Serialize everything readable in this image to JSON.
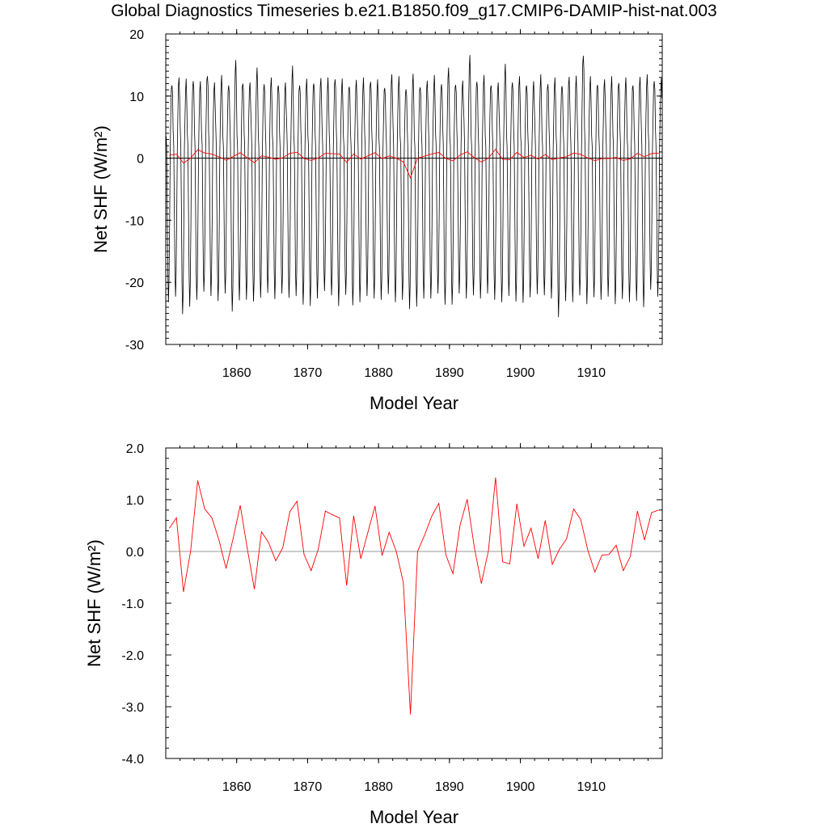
{
  "title": "Global Diagnostics Timeseries b.e21.B1850.f09_g17.CMIP6-DAMIP-hist-nat.003",
  "colors": {
    "monthly": "#000000",
    "annual": "#ff0000",
    "zero_line_top": "#000000",
    "zero_line_bottom": "#999999"
  },
  "chart_data": [
    {
      "type": "line",
      "xlabel": "Model Year",
      "ylabel": "Net SHF (W/m²)",
      "xlim": [
        1850,
        1920
      ],
      "ylim": [
        -30,
        20
      ],
      "x_ticks": [
        "1860",
        "1870",
        "1880",
        "1890",
        "1900",
        "1910"
      ],
      "y_ticks": [
        "20",
        "10",
        "0",
        "-10",
        "-20",
        "-30"
      ],
      "series": [
        {
          "style": "monthly",
          "color": "#000000",
          "note_values": "monthly seasonal cycle, peaks ~ +10 to +17, troughs ~ -21 to -26",
          "annual_peak": [
            12.5,
            13,
            12,
            12.8,
            12,
            14,
            12.2,
            12.6,
            12.1,
            15.4,
            12.8,
            12.2,
            13.8,
            12.3,
            12.6,
            12.5,
            12.2,
            14.1,
            12.1,
            12.4,
            12.8,
            12.9,
            12.2,
            13.1,
            12.4,
            12.3,
            12.6,
            12.2,
            12.7,
            12.3,
            12.1,
            13.5,
            12.4,
            11.5,
            13.2,
            12.2,
            12.5,
            12.6,
            12.3,
            14.2,
            12.6,
            12.5,
            15.8,
            12.7,
            13,
            12.5,
            12.2,
            14.4,
            12.6,
            12.8,
            12.5,
            12.4,
            12.7,
            12.3,
            12.6,
            12.4,
            13.1,
            12.5,
            16.9,
            12.8,
            12.6,
            12.7,
            12.4,
            12.5,
            12.6,
            12.5,
            13.1,
            12.7,
            12.8,
            12.5
          ],
          "annual_trough": [
            -23.2,
            -22.3,
            -25.1,
            -23.9,
            -22.8,
            -21.5,
            -22.2,
            -23,
            -21.8,
            -24.7,
            -22.9,
            -22.8,
            -23.1,
            -22.5,
            -21.7,
            -22.7,
            -21.8,
            -22.5,
            -22.2,
            -23.6,
            -23.8,
            -22.6,
            -21.4,
            -22.1,
            -23.8,
            -22,
            -23.7,
            -23.2,
            -22.2,
            -22.6,
            -22.8,
            -21.9,
            -23.2,
            -22.8,
            -24.3,
            -23.9,
            -22.6,
            -22.6,
            -21.8,
            -23.6,
            -23.6,
            -21.8,
            -22.6,
            -22.1,
            -22.6,
            -21.8,
            -22.8,
            -23.2,
            -22.2,
            -23.1,
            -23.3,
            -22.4,
            -21.9,
            -22.1,
            -22.6,
            -25.6,
            -23,
            -23.2,
            -22.1,
            -23.5,
            -22.4,
            -22.8,
            -22.3,
            -23.5,
            -22.7,
            -23.2,
            -23,
            -24,
            -21.2,
            -22.3
          ]
        },
        {
          "style": "annual",
          "color": "#ff0000",
          "x": [
            1850.5,
            1851.5,
            1852.5,
            1853.5,
            1854.5,
            1855.5,
            1856.5,
            1857.5,
            1858.5,
            1859.5,
            1860.5,
            1861.5,
            1862.5,
            1863.5,
            1864.5,
            1865.5,
            1866.5,
            1867.5,
            1868.5,
            1869.5,
            1870.5,
            1871.5,
            1872.5,
            1873.5,
            1874.5,
            1875.5,
            1876.5,
            1877.5,
            1878.5,
            1879.5,
            1880.5,
            1881.5,
            1882.5,
            1883.5,
            1884.5,
            1885.5,
            1886.5,
            1887.5,
            1888.5,
            1889.5,
            1890.5,
            1891.5,
            1892.5,
            1893.5,
            1894.5,
            1895.5,
            1896.5,
            1897.5,
            1898.5,
            1899.5,
            1900.5,
            1901.5,
            1902.5,
            1903.5,
            1904.5,
            1905.5,
            1906.5,
            1907.5,
            1908.5,
            1909.5,
            1910.5,
            1911.5,
            1912.5,
            1913.5,
            1914.5,
            1915.5,
            1916.5,
            1917.5,
            1918.5,
            1919.5
          ],
          "values": [
            0.45,
            0.65,
            -0.78,
            0,
            1.37,
            0.82,
            0.65,
            0.22,
            -0.33,
            0.25,
            0.89,
            0.05,
            -0.73,
            0.38,
            0.17,
            -0.18,
            0.07,
            0.77,
            0.97,
            -0.06,
            -0.37,
            0.04,
            0.78,
            0.71,
            0.65,
            -0.66,
            0.69,
            -0.14,
            0.37,
            0.88,
            -0.08,
            0.37,
            0,
            -0.6,
            -3.15,
            0,
            0.32,
            0.68,
            0.93,
            -0.07,
            -0.43,
            0.51,
            1.01,
            0.08,
            -0.62,
            0.02,
            1.43,
            -0.2,
            -0.24,
            0.92,
            0.1,
            0.45,
            -0.14,
            0.6,
            -0.25,
            0.04,
            0.24,
            0.82,
            0.62,
            0.03,
            -0.4,
            -0.07,
            -0.06,
            0.12,
            -0.37,
            -0.1,
            0.78,
            0.22,
            0.75,
            0.8
          ]
        }
      ]
    },
    {
      "type": "line",
      "xlabel": "Model Year",
      "ylabel": "Net SHF (W/m²)",
      "xlim": [
        1850,
        1920
      ],
      "ylim": [
        -4.0,
        2.0
      ],
      "x_ticks": [
        "1860",
        "1870",
        "1880",
        "1890",
        "1900",
        "1910"
      ],
      "y_ticks": [
        "2.0",
        "1.0",
        "0.0",
        "-1.0",
        "-2.0",
        "-3.0",
        "-4.0"
      ],
      "series": [
        {
          "style": "annual",
          "color": "#ff0000",
          "x": [
            1850.5,
            1851.5,
            1852.5,
            1853.5,
            1854.5,
            1855.5,
            1856.5,
            1857.5,
            1858.5,
            1859.5,
            1860.5,
            1861.5,
            1862.5,
            1863.5,
            1864.5,
            1865.5,
            1866.5,
            1867.5,
            1868.5,
            1869.5,
            1870.5,
            1871.5,
            1872.5,
            1873.5,
            1874.5,
            1875.5,
            1876.5,
            1877.5,
            1878.5,
            1879.5,
            1880.5,
            1881.5,
            1882.5,
            1883.5,
            1884.5,
            1885.5,
            1886.5,
            1887.5,
            1888.5,
            1889.5,
            1890.5,
            1891.5,
            1892.5,
            1893.5,
            1894.5,
            1895.5,
            1896.5,
            1897.5,
            1898.5,
            1899.5,
            1900.5,
            1901.5,
            1902.5,
            1903.5,
            1904.5,
            1905.5,
            1906.5,
            1907.5,
            1908.5,
            1909.5,
            1910.5,
            1911.5,
            1912.5,
            1913.5,
            1914.5,
            1915.5,
            1916.5,
            1917.5,
            1918.5,
            1919.5
          ],
          "values": [
            0.45,
            0.65,
            -0.78,
            0,
            1.37,
            0.82,
            0.65,
            0.22,
            -0.33,
            0.25,
            0.89,
            0.05,
            -0.73,
            0.38,
            0.17,
            -0.18,
            0.07,
            0.77,
            0.97,
            -0.06,
            -0.37,
            0.04,
            0.78,
            0.71,
            0.65,
            -0.66,
            0.69,
            -0.14,
            0.37,
            0.88,
            -0.08,
            0.37,
            0,
            -0.6,
            -3.15,
            0,
            0.32,
            0.68,
            0.93,
            -0.07,
            -0.43,
            0.51,
            1.01,
            0.08,
            -0.62,
            0.02,
            1.43,
            -0.2,
            -0.24,
            0.92,
            0.1,
            0.45,
            -0.14,
            0.6,
            -0.25,
            0.04,
            0.24,
            0.82,
            0.62,
            0.03,
            -0.4,
            -0.07,
            -0.06,
            0.12,
            -0.37,
            -0.1,
            0.78,
            0.22,
            0.75,
            0.8
          ]
        }
      ]
    }
  ]
}
